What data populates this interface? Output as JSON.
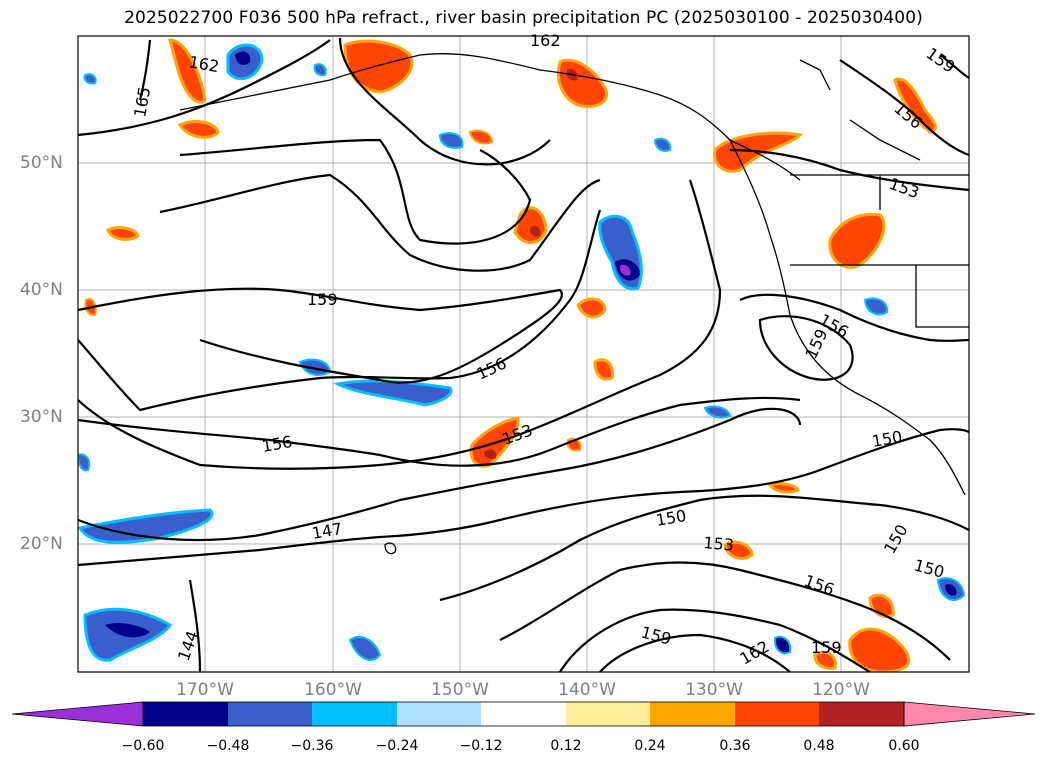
{
  "title": "2025022700 F036 500 hPa refract., river basin precipitation PC (2025030100 - 2025030400)",
  "lat_labels": [
    "50°N",
    "40°N",
    "30°N",
    "20°N"
  ],
  "lon_labels": [
    "170°W",
    "160°W",
    "150°W",
    "140°W",
    "130°W",
    "120°W"
  ],
  "contour_labels": [
    "162",
    "165",
    "162",
    "159",
    "156",
    "153",
    "159",
    "156",
    "156",
    "153",
    "156",
    "159",
    "150",
    "147",
    "150",
    "153",
    "156",
    "150",
    "150",
    "144",
    "159",
    "162",
    "159"
  ],
  "colorbar": {
    "colors": [
      "#9b30d9",
      "#00008b",
      "#3a5fcd",
      "#00bfff",
      "#b0e2ff",
      "#ffffff",
      "#ffee99",
      "#ffa500",
      "#ff4500",
      "#b22222",
      "#ff88aa"
    ],
    "tick_labels": [
      "−0.60",
      "−0.48",
      "−0.36",
      "−0.24",
      "−0.12",
      "0.12",
      "0.24",
      "0.36",
      "0.48",
      "0.60"
    ]
  }
}
